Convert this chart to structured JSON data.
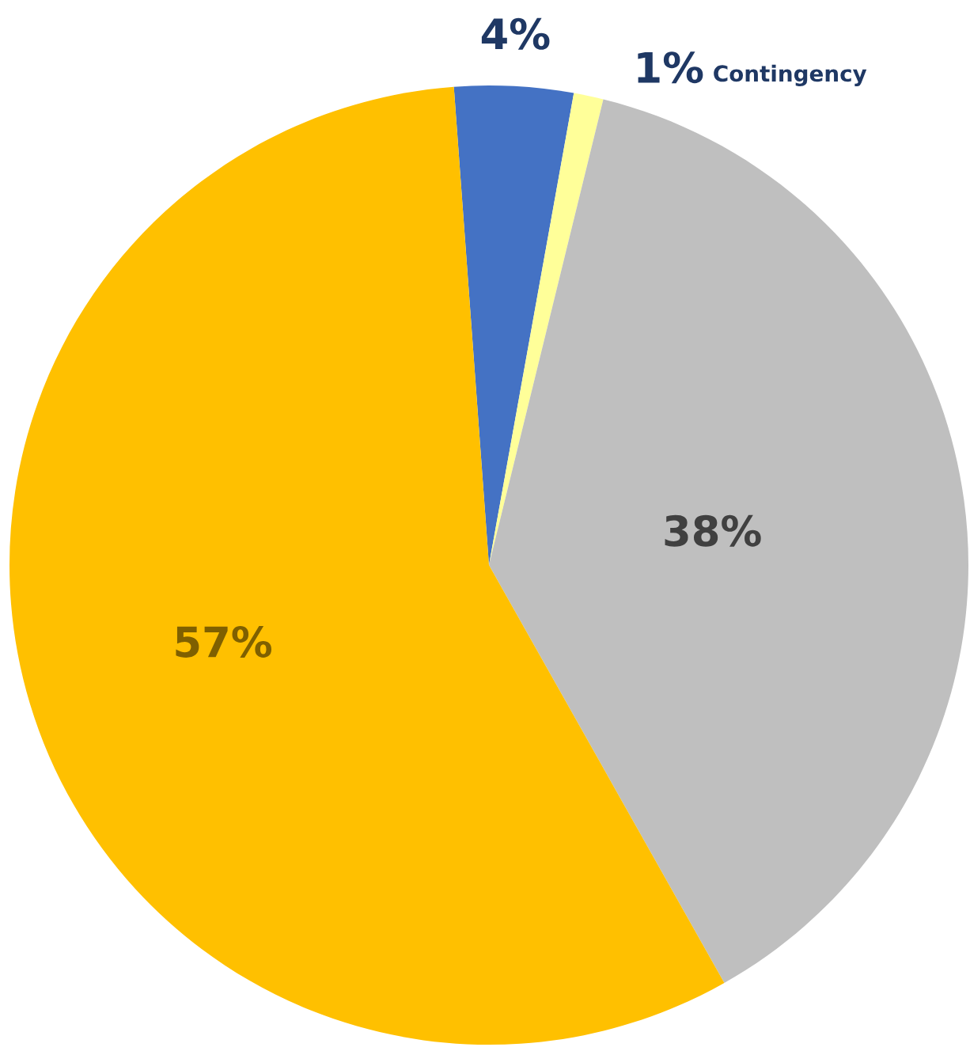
{
  "chart_data": {
    "type": "pie",
    "categories": [
      null,
      "Contingency",
      null,
      null
    ],
    "values": [
      4,
      1,
      38,
      57
    ],
    "colors": [
      "#4472c4",
      "#ffff99",
      "#bfbfbf",
      "#ffc000"
    ],
    "value_labels": [
      "4%",
      "1%",
      "38%",
      "57%"
    ],
    "legend": false
  }
}
